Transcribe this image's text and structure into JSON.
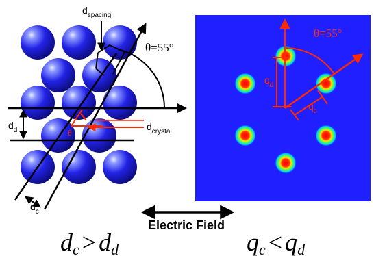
{
  "left_panel": {
    "theta_label": "θ=55°",
    "d_spacing_label": {
      "main": "d",
      "sub": "spacing"
    },
    "d_crystal_label": {
      "main": "d",
      "sub": "crystal"
    },
    "d_d_label": {
      "main": "d",
      "sub": "d"
    },
    "d_c_label": {
      "main": "d",
      "sub": "c"
    },
    "angle_mark": "θ"
  },
  "right_panel": {
    "theta_label": "θ=55°",
    "q_d_label": {
      "main": "q",
      "sub": "d"
    },
    "q_c_label": {
      "main": "q",
      "sub": "c"
    }
  },
  "field_label": "Electric Field",
  "equations": {
    "left": {
      "a": "d",
      "a_sub": "c",
      "op": ">",
      "b": "d",
      "b_sub": "d"
    },
    "right": {
      "a": "q",
      "a_sub": "c",
      "op": "<",
      "b": "q",
      "b_sub": "d"
    }
  },
  "colors": {
    "sphere": "#1a1ae0",
    "pattern_background": "#1f1fff",
    "annotation_red": "#ff2a00",
    "line": "#000000"
  }
}
